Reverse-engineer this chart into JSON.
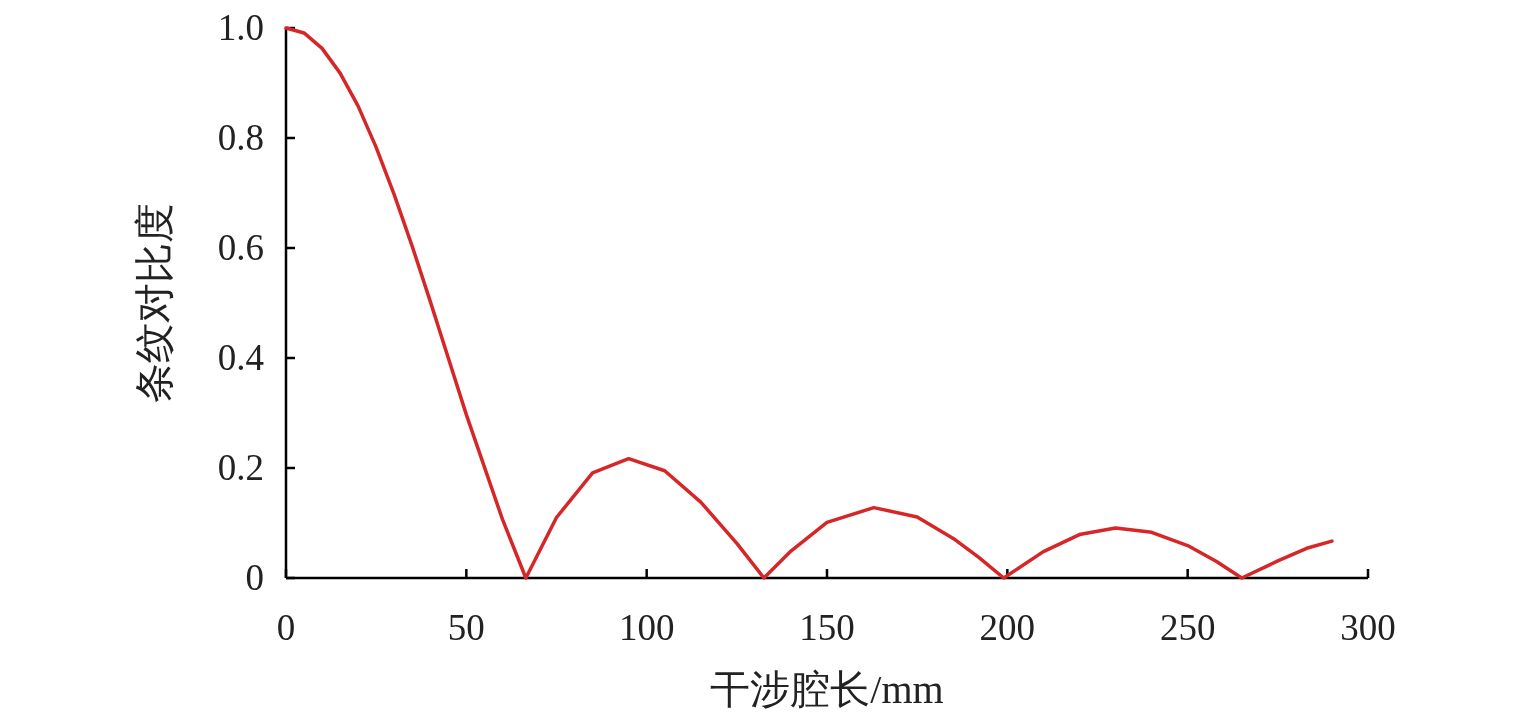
{
  "chart_data": {
    "type": "line",
    "xlabel": "干涉腔长/mm",
    "ylabel": "条纹对比度",
    "x": [
      0,
      5,
      10,
      15,
      20,
      25,
      30,
      35,
      40,
      45,
      50,
      60,
      66.5,
      75,
      85,
      95,
      105,
      115,
      125,
      132.5,
      140,
      150,
      163,
      175,
      185,
      192,
      199,
      210,
      220,
      230,
      240,
      250,
      258,
      265,
      275,
      283,
      290
    ],
    "series": [
      {
        "color": "#d62728",
        "values": [
          1.0,
          0.991,
          0.963,
          0.918,
          0.858,
          0.783,
          0.697,
          0.603,
          0.503,
          0.4,
          0.297,
          0.107,
          0,
          0.11,
          0.191,
          0.217,
          0.195,
          0.138,
          0.063,
          0,
          0.049,
          0.101,
          0.128,
          0.111,
          0.072,
          0.038,
          0,
          0.048,
          0.079,
          0.091,
          0.083,
          0.059,
          0.03,
          0,
          0.031,
          0.054,
          0.067
        ]
      }
    ],
    "xlim": [
      0,
      300
    ],
    "xticks": [
      0,
      50,
      100,
      150,
      200,
      250,
      300
    ],
    "ylim": [
      0,
      1.0
    ],
    "yticks": [
      0,
      {
        "value": 0.2,
        "label": "0.2"
      },
      {
        "value": 0.4,
        "label": "0.4"
      },
      {
        "value": 0.6,
        "label": "0.6"
      },
      {
        "value": 0.8,
        "label": "0.8"
      },
      {
        "value": 1.0,
        "label": "1.0"
      }
    ],
    "grid": false
  }
}
